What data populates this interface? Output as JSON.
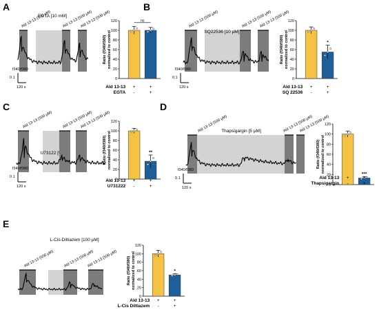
{
  "panels": [
    {
      "label": "A",
      "agonist": "Ald 13-13 (500 µM)",
      "trace_labels": [
        "Ald 13-13 (500 µM)",
        "Ald 13-13 (500 µM)",
        "Ald 13-13 (500 µM)"
      ],
      "treatment_label": "EGTA [10 mM]",
      "ylabel_trace": "f340/f380",
      "scale_y": "0.1",
      "scale_x": "120 s",
      "bar_ylabel": "Ratio (f340/f380) normalized to control",
      "yticks": [
        "0",
        "20",
        "40",
        "60",
        "80",
        "100",
        "120"
      ],
      "row_labels": [
        "Ald 13-13",
        "EGTA"
      ],
      "row_signs": [
        [
          "+",
          "+"
        ],
        [
          "-",
          "+"
        ]
      ],
      "significance": "ns"
    },
    {
      "label": "B",
      "agonist": "Ald 13-13 (500 µM)",
      "trace_labels": [
        "Ald 13-13 (500 µM)",
        "Ald 13-13 (500 µM)",
        "Ald 13-13 (500 µM)"
      ],
      "treatment_label": "SQ22536 [10 µM]",
      "ylabel_trace": "f340/f380",
      "scale_y": "0.1",
      "scale_x": "120 s",
      "bar_ylabel": "Ratio (f340/f380) normalized to control",
      "yticks": [
        "0",
        "20",
        "40",
        "60",
        "80",
        "100",
        "120"
      ],
      "row_labels": [
        "Ald 13-13",
        "SQ 22536"
      ],
      "row_signs": [
        [
          "+",
          "+"
        ],
        [
          "-",
          "+"
        ]
      ],
      "significance": "*"
    },
    {
      "label": "C",
      "agonist": "Ald 13-13 (500 µM)",
      "trace_labels": [
        "Ald 13-13 (500 µM)",
        "Ald 13-13 (500 µM)",
        "Ald 13-13 (500 µM)"
      ],
      "treatment_label": "U73122 [5 µM]",
      "ylabel_trace": "f340/f380",
      "scale_y": "0.1",
      "scale_x": "120 s",
      "bar_ylabel": "Ratio (f340/f380) normalized to control",
      "yticks": [
        "0",
        "20",
        "40",
        "60",
        "80",
        "100",
        "120"
      ],
      "row_labels": [
        "Ald 13-13",
        "U731222"
      ],
      "row_signs": [
        [
          "+",
          "+"
        ],
        [
          "-",
          "+"
        ]
      ],
      "significance": "**"
    },
    {
      "label": "D",
      "agonist": "Ald 13-13 (500 µM)",
      "trace_labels": [
        "Ald 13-13 (500 µM)",
        "Ald 13-13 (500 µM)",
        "Ald 13-13 (500 µM)"
      ],
      "treatment_label": "Thapsigargin [5 µM]",
      "ylabel_trace": "f340/f380",
      "scale_y": "0.1",
      "scale_x": "120 s",
      "bar_ylabel": "Ratio (f340/f380) normalized to control",
      "yticks": [
        "0",
        "20",
        "40",
        "60",
        "80",
        "100",
        "120"
      ],
      "row_labels": [
        "Ald 13-13",
        "Thapsigargin"
      ],
      "row_signs": [
        [
          "+",
          "+"
        ],
        [
          "-",
          "+"
        ]
      ],
      "significance": "***"
    },
    {
      "label": "E",
      "agonist": "Ald 13-13 (500 µM)",
      "trace_labels": [
        "Ald 13-13 (500 µM)",
        "Ald 13-13 (500 µM)",
        "Ald 13-13 (500 µM)"
      ],
      "treatment_label": "L-Cis-Diltiazem [100 µM]",
      "ylabel_trace": "",
      "scale_y": "",
      "scale_x": "",
      "bar_ylabel": "Ratio (f340/f380) normalized to control",
      "yticks": [
        "0",
        "20",
        "40",
        "60",
        "80",
        "100",
        "120"
      ],
      "row_labels": [
        "Ald 13-13",
        "L-Cis Diltiazem"
      ],
      "row_signs": [
        [
          "+",
          "+"
        ],
        [
          "-",
          "+"
        ]
      ],
      "significance": "*"
    }
  ],
  "chart_data": [
    {
      "type": "bar",
      "panel": "A",
      "categories": [
        "Ald 13-13",
        "Ald 13-13 + EGTA"
      ],
      "values": [
        100,
        100
      ],
      "errors": [
        8,
        6
      ],
      "ylim": [
        0,
        120
      ],
      "colors": [
        "#f5c243",
        "#1f5f99"
      ]
    },
    {
      "type": "bar",
      "panel": "B",
      "categories": [
        "Ald 13-13",
        "Ald 13-13 + SQ 22536"
      ],
      "values": [
        100,
        55
      ],
      "errors": [
        7,
        14
      ],
      "ylim": [
        0,
        120
      ],
      "colors": [
        "#f5c243",
        "#1f5f99"
      ]
    },
    {
      "type": "bar",
      "panel": "C",
      "categories": [
        "Ald 13-13",
        "Ald 13-13 + U731222"
      ],
      "values": [
        100,
        37
      ],
      "errors": [
        5,
        13
      ],
      "ylim": [
        0,
        120
      ],
      "colors": [
        "#f5c243",
        "#1f5f99"
      ]
    },
    {
      "type": "bar",
      "panel": "D",
      "categories": [
        "Ald 13-13",
        "Ald 13-13 + Thapsigargin"
      ],
      "values": [
        100,
        13
      ],
      "errors": [
        6,
        3
      ],
      "ylim": [
        0,
        120
      ],
      "colors": [
        "#f5c243",
        "#1f5f99"
      ]
    },
    {
      "type": "bar",
      "panel": "E",
      "categories": [
        "Ald 13-13",
        "Ald 13-13 + L-Cis Diltiazem"
      ],
      "values": [
        100,
        50
      ],
      "errors": [
        8,
        3
      ],
      "ylim": [
        0,
        120
      ],
      "colors": [
        "#f5c243",
        "#1f5f99"
      ]
    }
  ]
}
